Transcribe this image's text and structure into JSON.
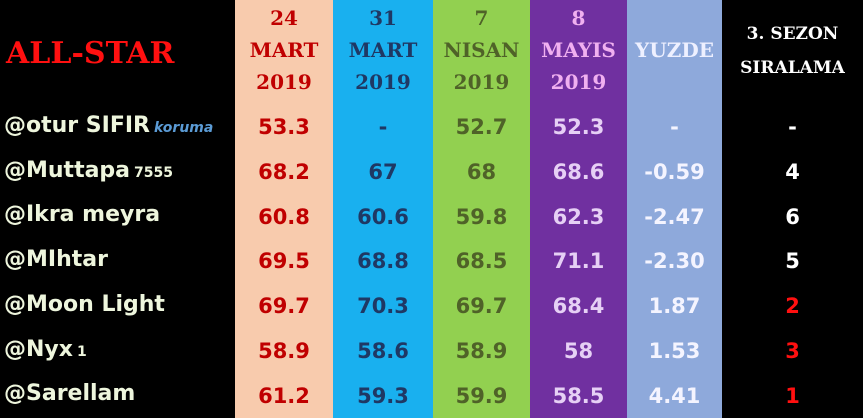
{
  "title": "ALL-STAR",
  "columns": [
    {
      "lines": [
        "24",
        "MART",
        "2019"
      ]
    },
    {
      "lines": [
        "31",
        "MART",
        "2019"
      ]
    },
    {
      "lines": [
        "7",
        "NISAN",
        "2019"
      ]
    },
    {
      "lines": [
        "8",
        "MAYIS",
        "2019"
      ]
    },
    {
      "lines": [
        "YUZDE"
      ]
    },
    {
      "lines": [
        "3. SEZON",
        "SIRALAMA"
      ]
    }
  ],
  "rows": [
    {
      "name": "@otur SIFIR",
      "suffix": "koruma",
      "cells": [
        "53.3",
        "-",
        "52.7",
        "52.3",
        "-",
        "-"
      ]
    },
    {
      "name": "@Muttapa",
      "suffix": "7555",
      "cells": [
        "68.2",
        "67",
        "68",
        "68.6",
        "-0.59",
        "4"
      ]
    },
    {
      "name": "@Ikra meyra",
      "cells": [
        "60.8",
        "60.6",
        "59.8",
        "62.3",
        "-2.47",
        "6"
      ]
    },
    {
      "name": "@MIhtar",
      "cells": [
        "69.5",
        "68.8",
        "68.5",
        "71.1",
        "-2.30",
        "5"
      ]
    },
    {
      "name": "@Moon Light",
      "cells": [
        "69.7",
        "70.3",
        "69.7",
        "68.4",
        "1.87",
        "2"
      ]
    },
    {
      "name": "@Nyx",
      "suffix": "1",
      "cells": [
        "58.9",
        "58.6",
        "58.9",
        "58",
        "1.53",
        "3"
      ]
    },
    {
      "name": "@Sarellam",
      "cells": [
        "61.2",
        "59.3",
        "59.9",
        "58.5",
        "4.41",
        "1"
      ]
    }
  ]
}
